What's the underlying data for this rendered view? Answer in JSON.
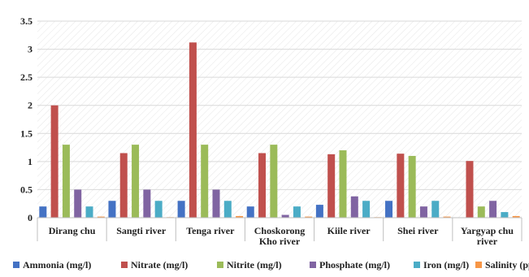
{
  "chart_data": {
    "type": "bar",
    "categories": [
      [
        "Dirang chu"
      ],
      [
        "Sangti river"
      ],
      [
        "Tenga river"
      ],
      [
        "Choskorong",
        "Kho river"
      ],
      [
        "Kiile river"
      ],
      [
        "Shei river"
      ],
      [
        "Yargyap chu",
        "river"
      ]
    ],
    "series": [
      {
        "name": "Ammonia (mg/l)",
        "color": "#4472c4",
        "values": [
          0.2,
          0.3,
          0.3,
          0.2,
          0.23,
          0.3,
          0
        ]
      },
      {
        "name": "Nitrate (mg/l)",
        "color": "#c0504d",
        "values": [
          2.0,
          1.15,
          3.12,
          1.15,
          1.13,
          1.14,
          1.01
        ]
      },
      {
        "name": "Nitrite (mg/l)",
        "color": "#9bbb59",
        "values": [
          1.3,
          1.3,
          1.3,
          1.3,
          1.2,
          1.1,
          0.2
        ]
      },
      {
        "name": "Phosphate (mg/l)",
        "color": "#8064a2",
        "values": [
          0.5,
          0.5,
          0.5,
          0.05,
          0.38,
          0.2,
          0.3
        ]
      },
      {
        "name": "Iron (mg/l)",
        "color": "#4bacc6",
        "values": [
          0.2,
          0.3,
          0.3,
          0.2,
          0.3,
          0.3,
          0.1
        ]
      },
      {
        "name": "Salinity (ppt)",
        "color": "#f79646",
        "values": [
          0.02,
          0.01,
          0.03,
          0.02,
          0.01,
          0.02,
          0.03
        ]
      }
    ],
    "y_ticks": [
      "0",
      "0.5",
      "1",
      "1.5",
      "2",
      "2.5",
      "3",
      "3.5"
    ],
    "ylim": [
      0,
      3.5
    ],
    "grid": true,
    "legend_position": "bottom",
    "title": "",
    "xlabel": "",
    "ylabel": ""
  }
}
